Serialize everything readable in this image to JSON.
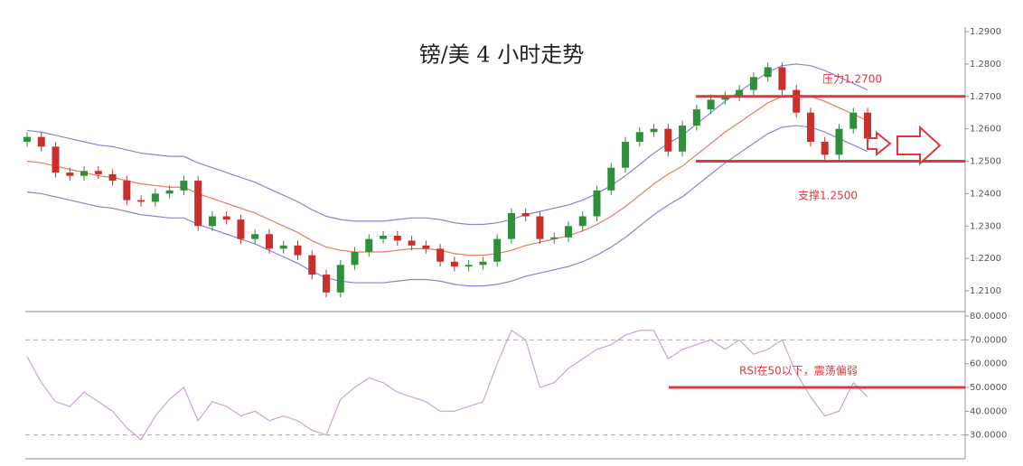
{
  "chart_data": [
    {
      "type": "candlestick",
      "title": "镑/美 4 小时走势",
      "open": [
        1.256,
        1.2575,
        1.2545,
        1.2465,
        1.2455,
        1.247,
        1.246,
        1.244,
        1.238,
        1.2375,
        1.24,
        1.241,
        1.244,
        1.23,
        1.233,
        1.232,
        1.226,
        1.2275,
        1.223,
        1.224,
        1.221,
        1.215,
        1.2095,
        1.218,
        1.222,
        1.226,
        1.227,
        1.2255,
        1.224,
        1.223,
        1.219,
        1.2175,
        1.218,
        1.219,
        1.226,
        1.234,
        1.233,
        1.226,
        1.2265,
        1.23,
        1.233,
        1.241,
        1.248,
        1.256,
        1.259,
        1.26,
        1.253,
        1.261,
        1.266,
        1.269,
        1.27,
        1.272,
        1.276,
        1.279,
        1.272,
        1.265,
        1.256,
        1.252,
        1.26,
        1.265
      ],
      "high": [
        1.259,
        1.259,
        1.256,
        1.248,
        1.2485,
        1.2485,
        1.2475,
        1.2455,
        1.2395,
        1.2415,
        1.2425,
        1.2455,
        1.2455,
        1.2345,
        1.2345,
        1.2335,
        1.229,
        1.229,
        1.2255,
        1.2255,
        1.2225,
        1.2165,
        1.2195,
        1.2235,
        1.2275,
        1.2285,
        1.2285,
        1.227,
        1.2255,
        1.2245,
        1.2205,
        1.2195,
        1.2205,
        1.2275,
        1.2355,
        1.2355,
        1.2345,
        1.228,
        1.2315,
        1.2345,
        1.2425,
        1.2495,
        1.2575,
        1.2605,
        1.2615,
        1.2615,
        1.2625,
        1.2675,
        1.2705,
        1.2715,
        1.2735,
        1.2775,
        1.2805,
        1.2805,
        1.2735,
        1.2665,
        1.2575,
        1.2615,
        1.2665,
        1.2665
      ],
      "low": [
        1.2545,
        1.253,
        1.245,
        1.244,
        1.244,
        1.2445,
        1.2425,
        1.2365,
        1.236,
        1.236,
        1.2385,
        1.2395,
        1.2285,
        1.2285,
        1.2305,
        1.2245,
        1.2245,
        1.2215,
        1.2215,
        1.2195,
        1.2135,
        1.208,
        1.208,
        1.2165,
        1.2205,
        1.2245,
        1.224,
        1.2225,
        1.2215,
        1.2175,
        1.216,
        1.216,
        1.2165,
        1.2175,
        1.2245,
        1.2315,
        1.2245,
        1.2245,
        1.225,
        1.2285,
        1.2315,
        1.2395,
        1.2465,
        1.2545,
        1.2575,
        1.2515,
        1.2515,
        1.2595,
        1.2645,
        1.2675,
        1.2685,
        1.2705,
        1.2745,
        1.2705,
        1.2635,
        1.2545,
        1.2505,
        1.2505,
        1.2585,
        1.2555
      ],
      "close": [
        1.2575,
        1.2545,
        1.2465,
        1.2455,
        1.247,
        1.246,
        1.244,
        1.238,
        1.2375,
        1.24,
        1.241,
        1.244,
        1.23,
        1.233,
        1.232,
        1.226,
        1.2275,
        1.223,
        1.224,
        1.221,
        1.215,
        1.2095,
        1.218,
        1.222,
        1.226,
        1.227,
        1.2255,
        1.224,
        1.223,
        1.219,
        1.2175,
        1.218,
        1.219,
        1.226,
        1.234,
        1.233,
        1.226,
        1.2265,
        1.23,
        1.233,
        1.241,
        1.248,
        1.256,
        1.259,
        1.26,
        1.253,
        1.261,
        1.266,
        1.269,
        1.27,
        1.272,
        1.276,
        1.279,
        1.272,
        1.265,
        1.256,
        1.252,
        1.26,
        1.265,
        1.257
      ],
      "up_color": "#2f8f3a",
      "down_color": "#c9302c",
      "series": [
        {
          "color": "#8c82dc",
          "values": [
            1.2595,
            1.259,
            1.258,
            1.257,
            1.256,
            1.255,
            1.2545,
            1.2535,
            1.2525,
            1.252,
            1.2515,
            1.2515,
            1.2495,
            1.248,
            1.2465,
            1.245,
            1.2435,
            1.2415,
            1.2395,
            1.2375,
            1.235,
            1.233,
            1.232,
            1.2315,
            1.2315,
            1.2315,
            1.232,
            1.2325,
            1.2325,
            1.232,
            1.231,
            1.2305,
            1.2305,
            1.231,
            1.232,
            1.2335,
            1.2345,
            1.2355,
            1.2365,
            1.238,
            1.24,
            1.2425,
            1.2455,
            1.249,
            1.2525,
            1.2555,
            1.258,
            1.2615,
            1.265,
            1.2685,
            1.2715,
            1.2745,
            1.2775,
            1.2795,
            1.28,
            1.2795,
            1.278,
            1.276,
            1.274,
            1.272
          ]
        },
        {
          "color": "#ea7a5e",
          "values": [
            1.25,
            1.2495,
            1.2485,
            1.2475,
            1.2465,
            1.2455,
            1.245,
            1.244,
            1.243,
            1.2425,
            1.242,
            1.242,
            1.24,
            1.2385,
            1.237,
            1.2355,
            1.234,
            1.232,
            1.23,
            1.228,
            1.2255,
            1.2235,
            1.2225,
            1.222,
            1.222,
            1.222,
            1.2225,
            1.223,
            1.223,
            1.2225,
            1.2215,
            1.221,
            1.221,
            1.2215,
            1.2225,
            1.224,
            1.225,
            1.226,
            1.227,
            1.2285,
            1.2305,
            1.233,
            1.236,
            1.2395,
            1.243,
            1.246,
            1.2485,
            1.252,
            1.2555,
            1.259,
            1.262,
            1.265,
            1.268,
            1.27,
            1.2705,
            1.27,
            1.2685,
            1.2665,
            1.2645,
            1.2625
          ]
        },
        {
          "color": "#8c82dc",
          "values": [
            1.2405,
            1.24,
            1.239,
            1.238,
            1.237,
            1.236,
            1.2355,
            1.2345,
            1.2335,
            1.233,
            1.2325,
            1.2325,
            1.2305,
            1.229,
            1.2275,
            1.226,
            1.2245,
            1.2225,
            1.2205,
            1.2185,
            1.216,
            1.214,
            1.213,
            1.2125,
            1.2125,
            1.2125,
            1.213,
            1.2135,
            1.2135,
            1.213,
            1.212,
            1.2115,
            1.2115,
            1.212,
            1.213,
            1.2145,
            1.2155,
            1.2165,
            1.2175,
            1.219,
            1.221,
            1.2235,
            1.2265,
            1.23,
            1.2335,
            1.2365,
            1.239,
            1.2425,
            1.246,
            1.2495,
            1.2525,
            1.2555,
            1.2585,
            1.2605,
            1.261,
            1.2605,
            1.259,
            1.257,
            1.255,
            1.253
          ]
        }
      ],
      "ylim": [
        1.2036,
        1.2914
      ],
      "yticks": [
        {
          "value": 1.21,
          "label": "1.2100"
        },
        {
          "value": 1.22,
          "label": "1.2200"
        },
        {
          "value": 1.23,
          "label": "1.2300"
        },
        {
          "value": 1.24,
          "label": "1.2400"
        },
        {
          "value": 1.25,
          "label": "1.2500"
        },
        {
          "value": 1.26,
          "label": "1.2600"
        },
        {
          "value": 1.27,
          "label": "1.2700"
        },
        {
          "value": 1.28,
          "label": "1.2800"
        },
        {
          "value": 1.29,
          "label": "1.2900"
        }
      ],
      "annotations": [
        {
          "text": "压力1.2700",
          "value": 1.27,
          "color": "#e0363d"
        },
        {
          "text": "支撑1.2500",
          "value": 1.25,
          "color": "#e0363d"
        }
      ]
    },
    {
      "type": "line",
      "series": [
        {
          "color": "#c9a3d6",
          "values": [
            63,
            52,
            44,
            42,
            48,
            44,
            40,
            33,
            28,
            38,
            45,
            50,
            36,
            44,
            42,
            38,
            40,
            36,
            38,
            36,
            32,
            30,
            45,
            50,
            54,
            52,
            48,
            46,
            44,
            40,
            40,
            42,
            44,
            60,
            74,
            70,
            50,
            52,
            58,
            62,
            66,
            68,
            72,
            74,
            74,
            62,
            66,
            68,
            70,
            66,
            70,
            64,
            66,
            70,
            56,
            46,
            38,
            40,
            52,
            46
          ]
        }
      ],
      "ylim": [
        20,
        81.9
      ],
      "yticks": [
        {
          "value": 30,
          "label": "30.0000"
        },
        {
          "value": 40,
          "label": "40.0000"
        },
        {
          "value": 50,
          "label": "50.0000"
        },
        {
          "value": 60,
          "label": "60.0000"
        },
        {
          "value": 70,
          "label": "70.0000"
        },
        {
          "value": 80,
          "label": "80.0000"
        }
      ],
      "ref_lines": [
        70,
        30
      ],
      "annotations": [
        {
          "text": "RSI在50以下，震荡偏弱",
          "value": 50,
          "color": "#e0363d"
        }
      ]
    }
  ]
}
